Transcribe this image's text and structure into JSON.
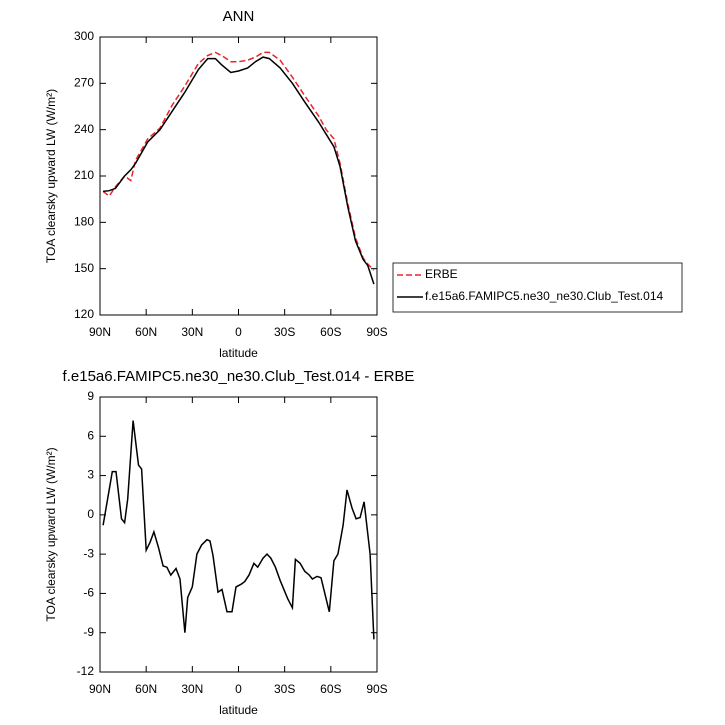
{
  "chart_data": [
    {
      "type": "line",
      "title": "ANN",
      "xlabel": "latitude",
      "ylabel": "TOA clearsky upward LW (W/m²)",
      "x": [
        88,
        84,
        80,
        74,
        70,
        67,
        59,
        51,
        43,
        35,
        26,
        20,
        15,
        11,
        5,
        0,
        -6,
        -11,
        -16,
        -20,
        -27,
        -35,
        -43,
        -52,
        -57,
        -62,
        -66,
        -71,
        -76,
        -81,
        -84,
        -88
      ],
      "series": [
        {
          "name": "ERBE",
          "color": "#e8262a",
          "dashed": true,
          "values": [
            200,
            197,
            203,
            210,
            207,
            220,
            234,
            241,
            256,
            268,
            283,
            288,
            290,
            288,
            284,
            284,
            285,
            287,
            290,
            290,
            285,
            274,
            262,
            249,
            240,
            234,
            218,
            192,
            170,
            157,
            153,
            149
          ]
        },
        {
          "name": "f.e15a6.FAMIPC5.ne30_ne30.Club_Test.014",
          "color": "#000000",
          "dashed": false,
          "values": [
            200,
            200.5,
            202,
            210,
            214,
            218,
            232,
            240,
            252,
            264,
            279,
            286,
            286,
            282,
            277,
            278,
            280,
            284,
            287,
            286,
            280,
            270,
            258,
            245,
            237,
            229,
            216,
            190,
            168,
            156,
            152,
            140
          ]
        }
      ],
      "xlim": [
        90,
        -90
      ],
      "xticks": [
        {
          "value": 90,
          "label": "90N"
        },
        {
          "value": 60,
          "label": "60N"
        },
        {
          "value": 30,
          "label": "30N"
        },
        0,
        {
          "value": -30,
          "label": "30S"
        },
        {
          "value": -60,
          "label": "60S"
        },
        {
          "value": -90,
          "label": "90S"
        }
      ],
      "ylim": [
        120,
        300
      ],
      "yticks": [
        120,
        150,
        180,
        210,
        240,
        270,
        300
      ],
      "legend": "right"
    },
    {
      "type": "line",
      "title": "f.e15a6.FAMIPC5.ne30_ne30.Club_Test.014 - ERBE",
      "xlabel": "latitude",
      "ylabel": "TOA clearsky upward LW (W/m²)",
      "x": [
        88,
        82,
        79.6,
        76,
        74,
        72,
        68.5,
        65,
        63,
        60,
        57.5,
        55,
        52,
        49,
        46.5,
        44,
        40.6,
        38,
        34.8,
        33,
        30,
        27,
        24,
        20.5,
        18.5,
        16.6,
        13.3,
        10.7,
        7.5,
        4.2,
        1.6,
        -1.6,
        -4,
        -6.8,
        -10,
        -12.5,
        -16,
        -18.5,
        -21,
        -24,
        -27,
        -32,
        -35,
        -37,
        -40,
        -43,
        -46,
        -48,
        -51,
        -53.6,
        -59,
        -62,
        -64.6,
        -68,
        -70.5,
        -73.8,
        -76.4,
        -79,
        -81.6,
        -85.5,
        -88
      ],
      "series": [
        {
          "name": "f.e15a6.FAMIPC5.ne30_ne30.Club_Test.014 - ERBE",
          "color": "#000000",
          "dashed": false,
          "values": [
            -0.8,
            3.3,
            3.3,
            -0.3,
            -0.6,
            1.2,
            7.2,
            3.8,
            3.5,
            -2.7,
            -2.1,
            -1.3,
            -2.5,
            -3.9,
            -4.0,
            -4.6,
            -4.1,
            -4.9,
            -9.0,
            -6.3,
            -5.5,
            -3.0,
            -2.3,
            -1.9,
            -2.0,
            -3.1,
            -5.9,
            -5.7,
            -7.4,
            -7.4,
            -5.5,
            -5.3,
            -5.1,
            -4.6,
            -3.7,
            -4.0,
            -3.3,
            -3.0,
            -3.3,
            -4.0,
            -5.0,
            -6.4,
            -7.1,
            -3.4,
            -3.7,
            -4.3,
            -4.6,
            -4.9,
            -4.7,
            -4.8,
            -7.4,
            -3.5,
            -3.0,
            -0.8,
            1.9,
            0.5,
            -0.3,
            -0.2,
            1.0,
            -3.0,
            -9.5
          ]
        }
      ],
      "xlim": [
        90,
        -90
      ],
      "xticks": [
        {
          "value": 90,
          "label": "90N"
        },
        {
          "value": 60,
          "label": "60N"
        },
        {
          "value": 30,
          "label": "30N"
        },
        0,
        {
          "value": -30,
          "label": "30S"
        },
        {
          "value": -60,
          "label": "60S"
        },
        {
          "value": -90,
          "label": "90S"
        }
      ],
      "ylim": [
        -12,
        9
      ],
      "yticks": [
        -12,
        -9,
        -6,
        -3,
        0,
        3,
        6,
        9
      ]
    }
  ]
}
